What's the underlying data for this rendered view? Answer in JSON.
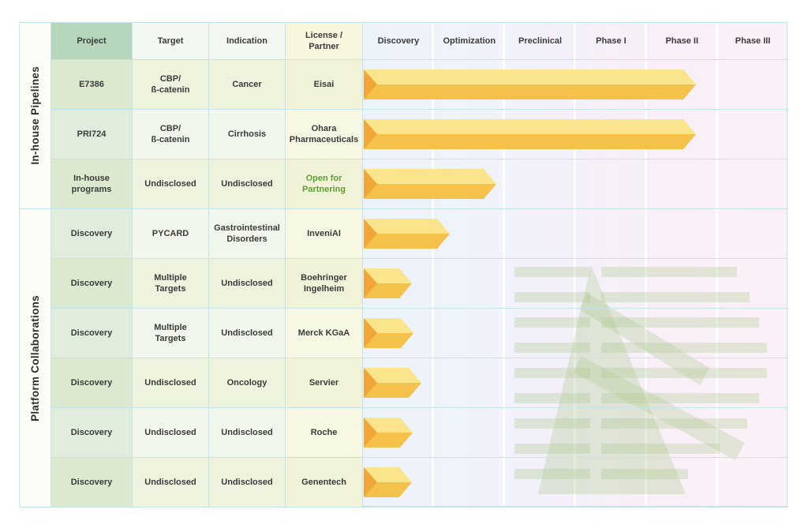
{
  "colors": {
    "bar_top": "#fae58c",
    "bar_bottom": "#f4c14b",
    "bar_wedge": "#f0a737",
    "project_header_green": "#b7d7bd",
    "open_partnering_green": "#5f9e33",
    "grid_line_teal": "#c4e4e8",
    "watermark_green": "#aecb8f"
  },
  "sections": [
    {
      "label": "In-house Pipelines"
    },
    {
      "label": "Platform Collaborations"
    }
  ],
  "header": {
    "project": "Project",
    "target": "Target",
    "indication": "Indication",
    "license": "License /\nPartner",
    "stages": [
      "Discovery",
      "Optimization",
      "Preclinical",
      "Phase I",
      "Phase II",
      "Phase III"
    ]
  },
  "rows": [
    {
      "project": "E7386",
      "target": "CBP/\nß-catenin",
      "indication": "Cancer",
      "license": "Eisai",
      "bar_end_stages": 4.69
    },
    {
      "project": "PRI724",
      "target": "CBP/\nß-catenin",
      "indication": "Cirrhosis",
      "license": "Ohara\nPharmaceuticals",
      "bar_end_stages": 4.69
    },
    {
      "project": "In-house\nprograms",
      "target": "Undisclosed",
      "indication": "Undisclosed",
      "license": "Open for\nPartnering",
      "bar_end_stages": 1.87
    },
    {
      "project": "Discovery",
      "target": "PYCARD",
      "indication": "Gastrointestinal\nDisorders",
      "license": "InveniAI",
      "bar_end_stages": 1.21
    },
    {
      "project": "Discovery",
      "target": "Multiple\nTargets",
      "indication": "Undisclosed",
      "license": "Boehringer\nIngelheim",
      "bar_end_stages": 0.68
    },
    {
      "project": "Discovery",
      "target": "Multiple\nTargets",
      "indication": "Undisclosed",
      "license": "Merck KGaA",
      "bar_end_stages": 0.7
    },
    {
      "project": "Discovery",
      "target": "Undisclosed",
      "indication": "Oncology",
      "license": "Servier",
      "bar_end_stages": 0.81
    },
    {
      "project": "Discovery",
      "target": "Undisclosed",
      "indication": "Undisclosed",
      "license": "Roche",
      "bar_end_stages": 0.69
    },
    {
      "project": "Discovery",
      "target": "Undisclosed",
      "indication": "Undisclosed",
      "license": "Genentech",
      "bar_end_stages": 0.68
    }
  ],
  "chart_data": {
    "type": "bar",
    "orientation": "horizontal",
    "categories": [
      "E7386 (Eisai)",
      "PRI724 (Ohara Pharmaceuticals)",
      "In-house programs (Open for Partnering)",
      "Discovery PYCARD (InveniAI)",
      "Discovery (Boehringer Ingelheim)",
      "Discovery (Merck KGaA)",
      "Discovery (Servier)",
      "Discovery (Roche)",
      "Discovery (Genentech)"
    ],
    "values": [
      4.69,
      4.69,
      1.87,
      1.21,
      0.68,
      0.7,
      0.81,
      0.69,
      0.68
    ],
    "x_stage_axis": [
      "Discovery",
      "Optimization",
      "Preclinical",
      "Phase I",
      "Phase II",
      "Phase III"
    ],
    "xlim": [
      0,
      6
    ],
    "title": "",
    "xlabel": "",
    "ylabel": "",
    "legend": false,
    "grid": true
  }
}
